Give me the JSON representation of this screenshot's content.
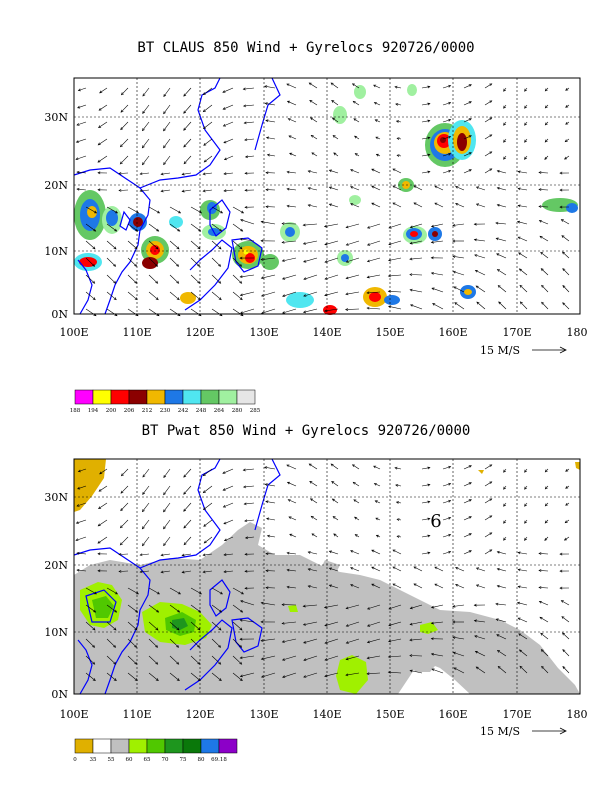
{
  "panels": [
    {
      "title": "BT CLAUS 850 Wind + Gyrelocs 920726/0000",
      "x_ticks": [
        "100E",
        "110E",
        "120E",
        "130E",
        "140E",
        "150E",
        "160E",
        "170E",
        "180"
      ],
      "y_ticks": [
        "0N",
        "10N",
        "20N",
        "30N"
      ],
      "vector_ref": "15 M/S",
      "legend": {
        "labels": [
          "188",
          "194",
          "200",
          "206",
          "212",
          "230",
          "242",
          "248",
          "264",
          "280",
          "285"
        ],
        "colors": [
          "#ff00ff",
          "#ffff00",
          "#ff0000",
          "#8b0000",
          "#f0b800",
          "#1e78e6",
          "#50e6f0",
          "#64c864",
          "#a0f0a0",
          "#e6e6e6"
        ]
      }
    },
    {
      "title": "BT Pwat 850 Wind + Gyrelocs 920726/0000",
      "x_ticks": [
        "100E",
        "110E",
        "120E",
        "130E",
        "140E",
        "150E",
        "160E",
        "170E",
        "180"
      ],
      "y_ticks": [
        "0N",
        "10N",
        "20N",
        "30N"
      ],
      "vector_ref": "15 M/S",
      "gyre_marker": "6",
      "legend": {
        "labels": [
          "0",
          "35",
          "55",
          "60",
          "65",
          "70",
          "75",
          "80",
          "69.18"
        ],
        "colors": [
          "#e0b000",
          "#ffffff",
          "#c0c0c0",
          "#a0f000",
          "#50c800",
          "#1e961e",
          "#0a780a",
          "#1e78e6",
          "#8c00c8"
        ]
      }
    }
  ]
}
